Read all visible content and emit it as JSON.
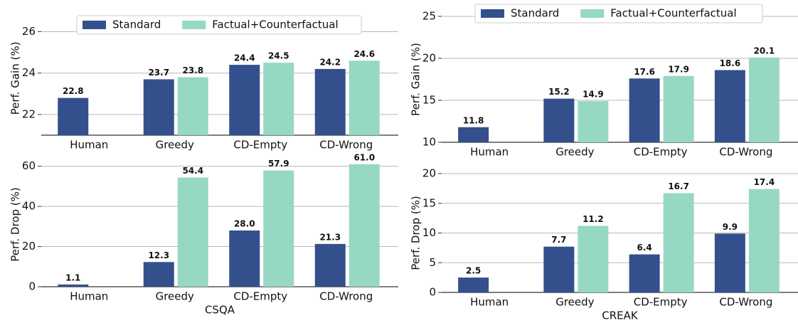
{
  "chart_data": [
    {
      "type": "bar",
      "ylabel": "Perf. Gain (%)",
      "categories": [
        "Human",
        "Greedy",
        "CD-Empty",
        "CD-Wrong"
      ],
      "series": [
        {
          "name": "Standard",
          "color": "#34508c",
          "values": [
            22.8,
            23.7,
            24.4,
            24.2
          ],
          "value_labels": [
            "22.8",
            "23.7",
            "24.4",
            "24.2"
          ]
        },
        {
          "name": "Factual+Counterfactual",
          "color": "#96d8c4",
          "values": [
            null,
            23.8,
            24.5,
            24.6
          ],
          "value_labels": [
            null,
            "23.8",
            "24.5",
            "24.6"
          ]
        }
      ],
      "ylim": [
        21,
        26.5
      ],
      "yticks": [
        22,
        24,
        26
      ],
      "grid": true,
      "legend": true
    },
    {
      "type": "bar",
      "ylabel": "Perf. Drop (%)",
      "xlabel": "CSQA",
      "categories": [
        "Human",
        "Greedy",
        "CD-Empty",
        "CD-Wrong"
      ],
      "series": [
        {
          "name": "Standard",
          "color": "#34508c",
          "values": [
            1.1,
            12.3,
            28.0,
            21.3
          ],
          "value_labels": [
            "1.1",
            "12.3",
            "28.0",
            "21.3"
          ]
        },
        {
          "name": "Factual+Counterfactual",
          "color": "#96d8c4",
          "values": [
            null,
            54.4,
            57.9,
            61.0
          ],
          "value_labels": [
            null,
            "54.4",
            "57.9",
            "61.0"
          ]
        }
      ],
      "ylim": [
        0,
        62
      ],
      "yticks": [
        0,
        20,
        40,
        60
      ],
      "grid": true,
      "legend": false
    },
    {
      "type": "bar",
      "ylabel": "Perf. Gain (%)",
      "categories": [
        "Human",
        "Greedy",
        "CD-Empty",
        "CD-Wrong"
      ],
      "series": [
        {
          "name": "Standard",
          "color": "#34508c",
          "values": [
            11.8,
            15.2,
            17.6,
            18.6
          ],
          "value_labels": [
            "11.8",
            "15.2",
            "17.6",
            "18.6"
          ]
        },
        {
          "name": "Factual+Counterfactual",
          "color": "#96d8c4",
          "values": [
            null,
            14.9,
            17.9,
            20.1
          ],
          "value_labels": [
            null,
            "14.9",
            "17.9",
            "20.1"
          ]
        }
      ],
      "ylim": [
        10,
        25
      ],
      "yticks": [
        10,
        15,
        20,
        25
      ],
      "grid": true,
      "legend": true
    },
    {
      "type": "bar",
      "ylabel": "Perf. Drop (%)",
      "xlabel": "CREAK",
      "categories": [
        "Human",
        "Greedy",
        "CD-Empty",
        "CD-Wrong"
      ],
      "series": [
        {
          "name": "Standard",
          "color": "#34508c",
          "values": [
            2.5,
            7.7,
            6.4,
            9.9
          ],
          "value_labels": [
            "2.5",
            "7.7",
            "6.4",
            "9.9"
          ]
        },
        {
          "name": "Factual+Counterfactual",
          "color": "#96d8c4",
          "values": [
            null,
            11.2,
            16.7,
            17.4
          ],
          "value_labels": [
            null,
            "11.2",
            "16.7",
            "17.4"
          ]
        }
      ],
      "ylim": [
        0,
        20
      ],
      "yticks": [
        0,
        5,
        10,
        15,
        20
      ],
      "grid": true,
      "legend": false
    }
  ]
}
